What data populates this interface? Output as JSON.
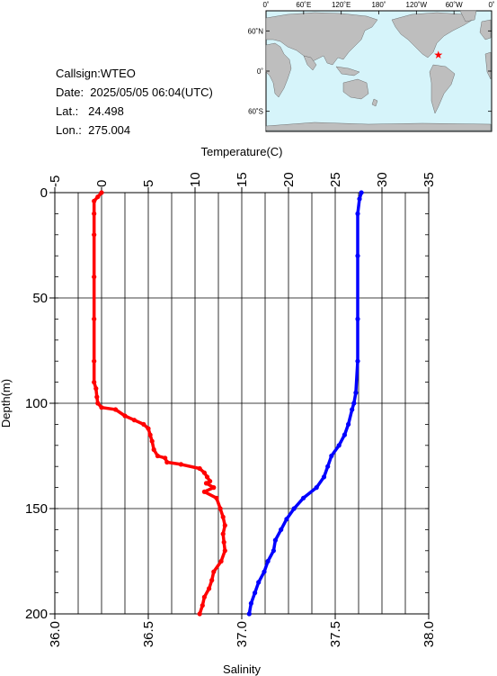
{
  "station": {
    "callsign": "Callsign:WTEO",
    "date": "Date:  2025/05/05 06:04(UTC)",
    "lat": "Lat.:   24.498",
    "lon": "Lon.:  275.004"
  },
  "map": {
    "top_labels": [
      "0˚",
      "60˚E",
      "120˚E",
      "180˚",
      "120˚W",
      "60˚W",
      "0˚"
    ],
    "lat_labels": [
      "60˚N",
      "0˚",
      "60˚S"
    ],
    "ocean_color": "#d6f4fa",
    "land_color": "#bebebe",
    "marker_color": "#ff0000",
    "marker": {
      "lon": 275.004,
      "lat": 24.498
    }
  },
  "chart_data": {
    "type": "line",
    "top_axis": {
      "label": "Temperature(C)",
      "range": [
        -5,
        35
      ],
      "ticks": [
        "-5",
        "0",
        "5",
        "10",
        "15",
        "20",
        "25",
        "30",
        "35"
      ]
    },
    "bottom_axis": {
      "label": "Salinity",
      "range": [
        36.0,
        38.0
      ],
      "ticks": [
        "36.0",
        "36.5",
        "37.0",
        "37.5",
        "38.0"
      ]
    },
    "y_axis": {
      "label": "Depth(m)",
      "range": [
        0,
        200
      ],
      "reversed": true,
      "ticks": [
        "0",
        "50",
        "100",
        "150",
        "200"
      ]
    },
    "grid": true,
    "series": [
      {
        "axis": "temperature",
        "color": "#ff0000",
        "points": [
          [
            0.0,
            0
          ],
          [
            -0.4,
            2
          ],
          [
            -0.8,
            4
          ],
          [
            -0.8,
            10
          ],
          [
            -0.8,
            20
          ],
          [
            -0.8,
            40
          ],
          [
            -0.8,
            60
          ],
          [
            -0.8,
            80
          ],
          [
            -0.8,
            90
          ],
          [
            -0.6,
            93
          ],
          [
            -0.5,
            97
          ],
          [
            -0.4,
            100
          ],
          [
            0,
            102
          ],
          [
            1.5,
            103
          ],
          [
            2.5,
            106
          ],
          [
            3.5,
            108
          ],
          [
            4.5,
            110
          ],
          [
            5.0,
            112
          ],
          [
            5.2,
            115
          ],
          [
            5.4,
            118
          ],
          [
            5.6,
            122
          ],
          [
            6.0,
            125
          ],
          [
            6.8,
            126
          ],
          [
            7.0,
            128
          ],
          [
            8.5,
            129
          ],
          [
            10.5,
            131
          ],
          [
            11.0,
            133
          ],
          [
            11.3,
            135
          ],
          [
            11.6,
            137
          ],
          [
            11.2,
            138
          ],
          [
            12.0,
            140
          ],
          [
            11.0,
            142
          ],
          [
            12.3,
            145
          ],
          [
            12.7,
            150
          ],
          [
            13.0,
            154
          ],
          [
            13.2,
            158
          ],
          [
            13.0,
            162
          ],
          [
            13.1,
            166
          ],
          [
            13.2,
            170
          ],
          [
            12.8,
            175
          ],
          [
            12.0,
            180
          ],
          [
            11.8,
            184
          ],
          [
            11.5,
            188
          ],
          [
            11.0,
            192
          ],
          [
            10.8,
            196
          ],
          [
            10.5,
            200
          ]
        ]
      },
      {
        "axis": "salinity",
        "color": "#0000ff",
        "points": [
          [
            37.64,
            0
          ],
          [
            37.63,
            3
          ],
          [
            37.62,
            10
          ],
          [
            37.62,
            30
          ],
          [
            37.62,
            60
          ],
          [
            37.62,
            80
          ],
          [
            37.61,
            95
          ],
          [
            37.6,
            100
          ],
          [
            37.59,
            103
          ],
          [
            37.57,
            110
          ],
          [
            37.55,
            115
          ],
          [
            37.52,
            120
          ],
          [
            37.48,
            125
          ],
          [
            37.46,
            130
          ],
          [
            37.44,
            135
          ],
          [
            37.4,
            140
          ],
          [
            37.33,
            145
          ],
          [
            37.28,
            150
          ],
          [
            37.24,
            155
          ],
          [
            37.21,
            160
          ],
          [
            37.18,
            165
          ],
          [
            37.17,
            170
          ],
          [
            37.14,
            175
          ],
          [
            37.12,
            180
          ],
          [
            37.09,
            185
          ],
          [
            37.07,
            190
          ],
          [
            37.05,
            195
          ],
          [
            37.04,
            200
          ]
        ]
      }
    ]
  }
}
